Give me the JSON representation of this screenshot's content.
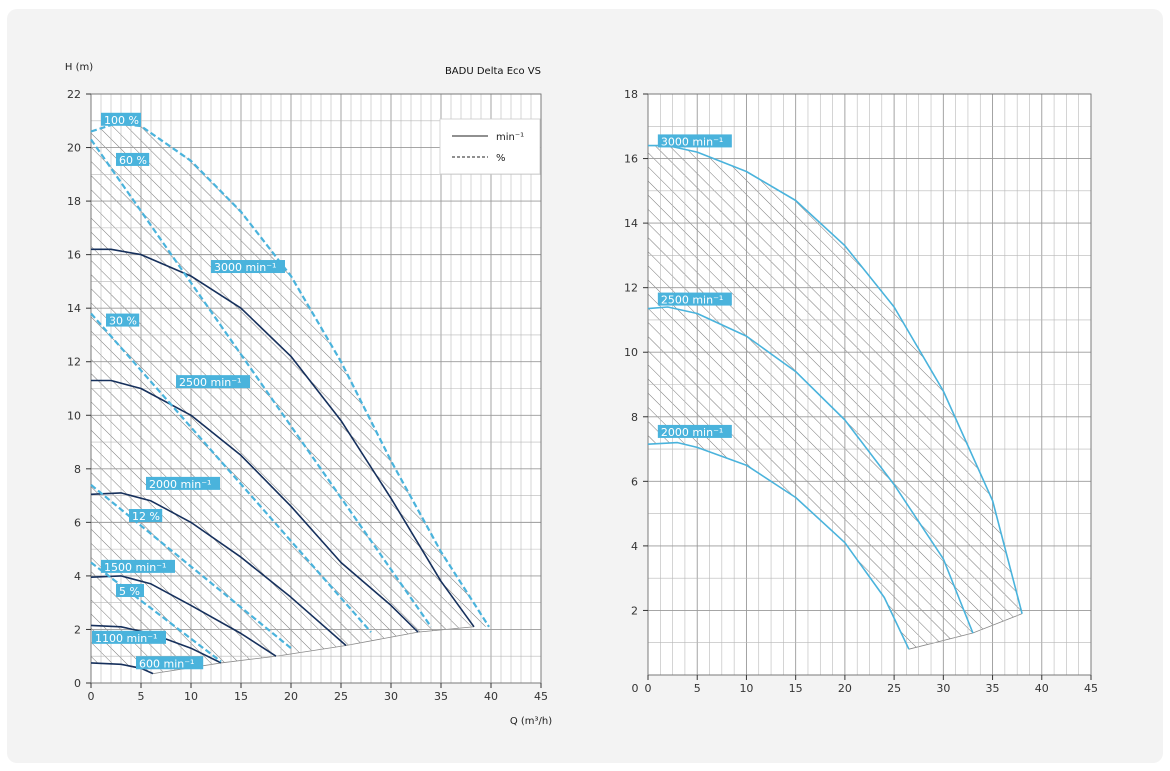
{
  "chart_data": [
    {
      "type": "line",
      "title": "BADU Delta Eco VS",
      "xlabel": "Q (m³/h)",
      "ylabel": "H (m)",
      "xlim": [
        0,
        45
      ],
      "ylim": [
        0,
        22
      ],
      "x_ticks": [
        "0",
        "5",
        "10",
        "15",
        "20",
        "25",
        "30",
        "35",
        "40",
        "45"
      ],
      "y_ticks": [
        "0",
        "2",
        "4",
        "6",
        "8",
        "10",
        "12",
        "14",
        "16",
        "18",
        "20",
        "22"
      ],
      "grid": true,
      "hatched_region": true,
      "legend": {
        "placement": "top-right",
        "entries": [
          {
            "name": "min⁻¹",
            "style": "solid"
          },
          {
            "name": "%",
            "style": "dashed"
          }
        ]
      },
      "series": [
        {
          "name": "3000 min⁻¹",
          "style": "solid",
          "color": "#16305c",
          "label_at": [
            12,
            15.5
          ],
          "points": [
            [
              0,
              16.2
            ],
            [
              2,
              16.2
            ],
            [
              5,
              16.0
            ],
            [
              10,
              15.2
            ],
            [
              15,
              14.0
            ],
            [
              20,
              12.2
            ],
            [
              25,
              9.8
            ],
            [
              30,
              6.9
            ],
            [
              35,
              3.8
            ],
            [
              38.3,
              2.1
            ]
          ]
        },
        {
          "name": "2500 min⁻¹",
          "style": "solid",
          "color": "#16305c",
          "label_at": [
            8.5,
            11.2
          ],
          "points": [
            [
              0,
              11.3
            ],
            [
              2,
              11.3
            ],
            [
              5,
              11.0
            ],
            [
              10,
              10.0
            ],
            [
              15,
              8.5
            ],
            [
              20,
              6.6
            ],
            [
              25,
              4.5
            ],
            [
              30,
              2.9
            ],
            [
              32.7,
              1.9
            ]
          ]
        },
        {
          "name": "2000 min⁻¹",
          "style": "solid",
          "color": "#16305c",
          "label_at": [
            5.5,
            7.4
          ],
          "points": [
            [
              0,
              7.05
            ],
            [
              3,
              7.1
            ],
            [
              6,
              6.8
            ],
            [
              10,
              6.0
            ],
            [
              15,
              4.7
            ],
            [
              20,
              3.2
            ],
            [
              25.5,
              1.4
            ]
          ]
        },
        {
          "name": "1500 min⁻¹",
          "style": "solid",
          "color": "#16305c",
          "label_at": [
            1,
            4.3
          ],
          "points": [
            [
              0,
              3.95
            ],
            [
              3,
              4.0
            ],
            [
              6,
              3.7
            ],
            [
              10,
              2.9
            ],
            [
              15,
              1.85
            ],
            [
              18.5,
              1.0
            ]
          ]
        },
        {
          "name": "1100 min⁻¹",
          "style": "solid",
          "color": "#16305c",
          "label_at": [
            0.1,
            1.65
          ],
          "points": [
            [
              0,
              2.15
            ],
            [
              3,
              2.1
            ],
            [
              6,
              1.85
            ],
            [
              10,
              1.3
            ],
            [
              13,
              0.75
            ]
          ]
        },
        {
          "name": "600 min⁻¹",
          "style": "solid",
          "color": "#16305c",
          "label_at": [
            4.5,
            0.7
          ],
          "points": [
            [
              0,
              0.75
            ],
            [
              3,
              0.7
            ],
            [
              5,
              0.55
            ],
            [
              6.2,
              0.35
            ]
          ]
        },
        {
          "name": "100 %",
          "style": "dashed",
          "color": "#4ab3dc",
          "label_at": [
            1,
            21
          ],
          "points": [
            [
              0,
              20.6
            ],
            [
              2.5,
              20.9
            ],
            [
              5,
              20.8
            ],
            [
              10,
              19.5
            ],
            [
              15,
              17.6
            ],
            [
              20,
              15.2
            ],
            [
              25,
              12.0
            ],
            [
              30,
              8.3
            ],
            [
              35,
              4.9
            ],
            [
              39.8,
              2.1
            ]
          ]
        },
        {
          "name": "60 %",
          "style": "dashed",
          "color": "#4ab3dc",
          "label_at": [
            2.5,
            19.5
          ],
          "points": [
            [
              0,
              20.3
            ],
            [
              34,
              2.1
            ]
          ]
        },
        {
          "name": "30 %",
          "style": "dashed",
          "color": "#4ab3dc",
          "label_at": [
            1.5,
            13.5
          ],
          "points": [
            [
              0,
              13.8
            ],
            [
              28,
              1.9
            ]
          ]
        },
        {
          "name": "12 %",
          "style": "dashed",
          "color": "#4ab3dc",
          "label_at": [
            3.8,
            6.2
          ],
          "points": [
            [
              0,
              7.4
            ],
            [
              20,
              1.3
            ]
          ]
        },
        {
          "name": "5 %",
          "style": "dashed",
          "color": "#4ab3dc",
          "label_at": [
            2.5,
            3.4
          ],
          "points": [
            [
              0,
              4.5
            ],
            [
              13,
              0.8
            ]
          ]
        }
      ]
    },
    {
      "type": "line",
      "title": "",
      "xlabel": "",
      "ylabel": "",
      "xlim": [
        0,
        45
      ],
      "ylim": [
        0,
        18
      ],
      "x_ticks": [
        "0",
        "5",
        "10",
        "15",
        "20",
        "25",
        "30",
        "35",
        "40",
        "45"
      ],
      "y_ticks": [
        "2",
        "4",
        "6",
        "8",
        "10",
        "12",
        "14",
        "16",
        "18"
      ],
      "grid": true,
      "hatched_region": true,
      "series": [
        {
          "name": "3000 min⁻¹",
          "style": "solid",
          "color": "#4ab3dc",
          "label_at": [
            1,
            16.5
          ],
          "points": [
            [
              0,
              16.4
            ],
            [
              2,
              16.4
            ],
            [
              5,
              16.2
            ],
            [
              10,
              15.6
            ],
            [
              15,
              14.7
            ],
            [
              20,
              13.3
            ],
            [
              25,
              11.4
            ],
            [
              30,
              8.8
            ],
            [
              35,
              5.4
            ],
            [
              38,
              1.9
            ]
          ]
        },
        {
          "name": "2500 min⁻¹",
          "style": "solid",
          "color": "#4ab3dc",
          "label_at": [
            1,
            11.6
          ],
          "points": [
            [
              0,
              11.35
            ],
            [
              2,
              11.4
            ],
            [
              5,
              11.2
            ],
            [
              10,
              10.5
            ],
            [
              15,
              9.4
            ],
            [
              20,
              7.9
            ],
            [
              25,
              5.9
            ],
            [
              30,
              3.6
            ],
            [
              33,
              1.3
            ]
          ]
        },
        {
          "name": "2000 min⁻¹",
          "style": "solid",
          "color": "#4ab3dc",
          "label_at": [
            1,
            7.5
          ],
          "points": [
            [
              0,
              7.15
            ],
            [
              3,
              7.2
            ],
            [
              5,
              7.05
            ],
            [
              10,
              6.5
            ],
            [
              15,
              5.5
            ],
            [
              20,
              4.1
            ],
            [
              24,
              2.4
            ],
            [
              26.5,
              0.8
            ]
          ]
        }
      ]
    }
  ]
}
